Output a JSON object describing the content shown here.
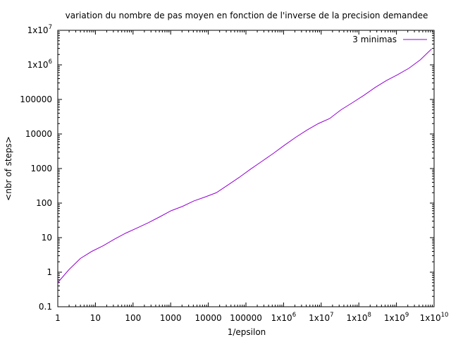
{
  "chart_data": {
    "type": "line",
    "title": "variation du nombre de pas moyen en fonction de l'inverse de la precision demandee",
    "xlabel": "1/epsilon",
    "ylabel": "<nbr of steps>",
    "xscale": "log",
    "yscale": "log",
    "xlim": [
      1,
      10000000000
    ],
    "ylim": [
      0.1,
      10000000
    ],
    "grid": false,
    "legend_position": "top-right",
    "x_ticks": [
      {
        "value": 1,
        "base": "1",
        "exp": ""
      },
      {
        "value": 10,
        "base": "10",
        "exp": ""
      },
      {
        "value": 100,
        "base": "100",
        "exp": ""
      },
      {
        "value": 1000,
        "base": "1000",
        "exp": ""
      },
      {
        "value": 10000,
        "base": "10000",
        "exp": ""
      },
      {
        "value": 100000,
        "base": "100000",
        "exp": ""
      },
      {
        "value": 1000000,
        "base": "1x10",
        "exp": "6"
      },
      {
        "value": 10000000,
        "base": "1x10",
        "exp": "7"
      },
      {
        "value": 100000000,
        "base": "1x10",
        "exp": "8"
      },
      {
        "value": 1000000000,
        "base": "1x10",
        "exp": "9"
      },
      {
        "value": 10000000000,
        "base": "1x10",
        "exp": "10"
      }
    ],
    "y_ticks": [
      {
        "value": 0.1,
        "base": "0.1",
        "exp": ""
      },
      {
        "value": 1,
        "base": "1",
        "exp": ""
      },
      {
        "value": 10,
        "base": "10",
        "exp": ""
      },
      {
        "value": 100,
        "base": "100",
        "exp": ""
      },
      {
        "value": 1000,
        "base": "1000",
        "exp": ""
      },
      {
        "value": 10000,
        "base": "10000",
        "exp": ""
      },
      {
        "value": 100000,
        "base": "100000",
        "exp": ""
      },
      {
        "value": 1000000,
        "base": "1x10",
        "exp": "6"
      },
      {
        "value": 10000000,
        "base": "1x10",
        "exp": "7"
      }
    ],
    "series": [
      {
        "name": "3 minimas",
        "color": "#9400d3",
        "x": [
          1,
          2,
          4,
          8,
          16,
          32,
          64,
          128,
          256,
          512,
          1024,
          2048,
          4096,
          8192,
          16384,
          32768,
          65536,
          131072,
          262144,
          524288,
          1048576,
          2097152,
          4194304,
          8388608,
          16777216,
          33554432,
          67108864,
          134217728,
          268435456,
          536870912,
          1073741824,
          2147483648,
          4294967296,
          8589934592
        ],
        "y": [
          0.5,
          1.2,
          2.5,
          4,
          5.8,
          9,
          13.5,
          19,
          27,
          40,
          60,
          80,
          115,
          150,
          200,
          330,
          550,
          950,
          1600,
          2700,
          4700,
          8000,
          13000,
          20000,
          28000,
          50000,
          80000,
          130000,
          220000,
          350000,
          520000,
          800000,
          1400000,
          2900000
        ]
      }
    ]
  }
}
